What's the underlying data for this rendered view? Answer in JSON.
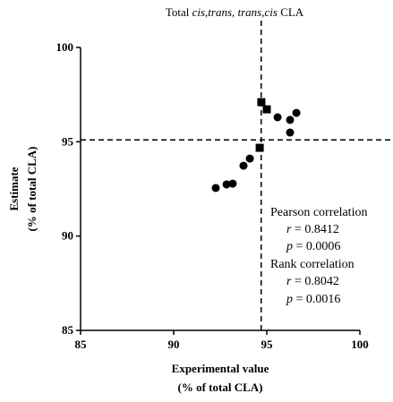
{
  "chart_data": {
    "type": "scatter",
    "title_parts": [
      "Total",
      "cis,trans, trans,cis",
      "CLA"
    ],
    "x_label": [
      "Experimental value",
      "(% of total CLA)"
    ],
    "y_label": [
      "Estimate",
      "(% of total CLA)"
    ],
    "xlim": [
      85,
      100
    ],
    "xticks": [
      85,
      90,
      95,
      100
    ],
    "ylim": [
      85,
      100
    ],
    "yticks": [
      85,
      90,
      95,
      100
    ],
    "vline": 94.7,
    "hline": 95.1,
    "series": [
      {
        "marker": "circle",
        "color": "#000000",
        "x": [
          92.26,
          92.84,
          93.17,
          93.75,
          94.09,
          95.58,
          96.25,
          96.59,
          96.25
        ],
        "values": [
          92.55,
          92.74,
          92.78,
          93.73,
          94.11,
          96.3,
          96.16,
          96.53,
          95.49
        ]
      },
      {
        "marker": "square",
        "color": "#000000",
        "x": [
          94.62,
          94.71,
          95.0
        ],
        "values": [
          94.68,
          97.1,
          96.72
        ]
      }
    ],
    "annotations": [
      "Pearson correlation",
      [
        "r",
        "= 0.8412"
      ],
      [
        "p",
        "= 0.0006"
      ],
      "Rank correlation",
      [
        "r",
        "= 0.8042"
      ],
      [
        "p",
        "= 0.0016"
      ]
    ]
  }
}
